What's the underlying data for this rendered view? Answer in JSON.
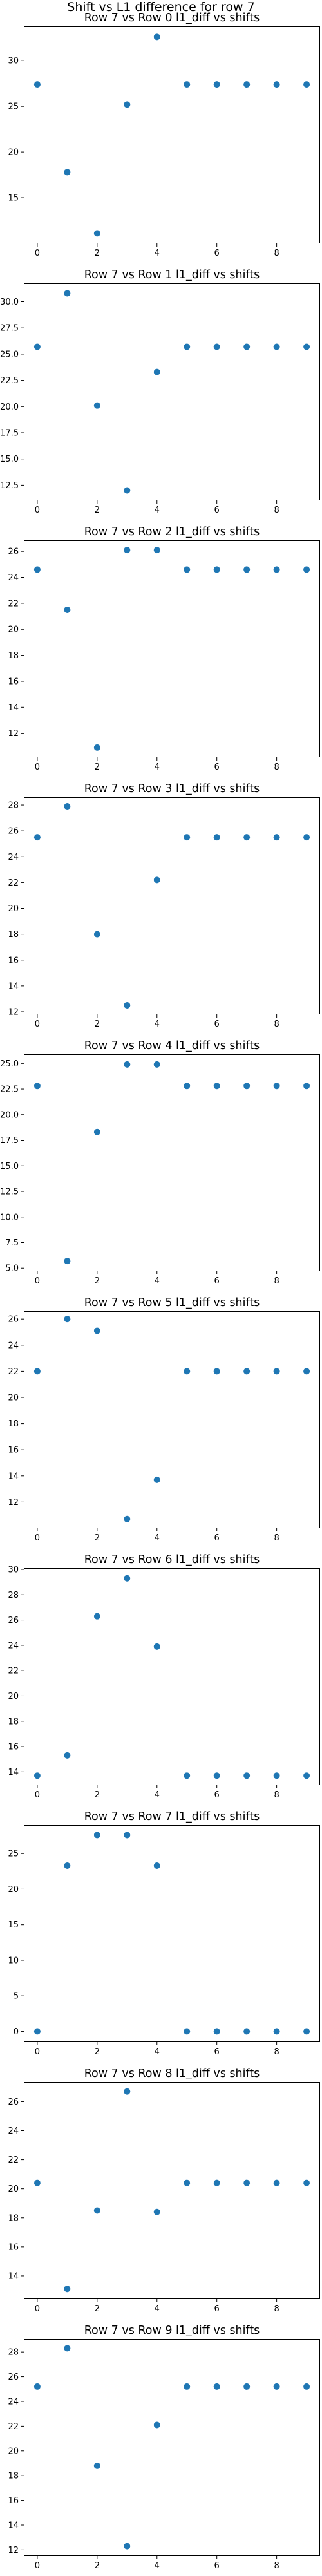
{
  "suptitle": "Shift vs L1 difference for row 7",
  "marker_color": "#1f77b4",
  "chart_data": [
    {
      "type": "scatter",
      "title": "Row 7 vs Row 0 l1_diff vs shifts",
      "x": [
        0,
        1,
        2,
        3,
        4,
        5,
        6,
        7,
        8,
        9
      ],
      "y": [
        27.4,
        17.8,
        11.1,
        25.2,
        32.6,
        27.4,
        27.4,
        27.4,
        27.4,
        27.4
      ],
      "xticks": [
        0,
        2,
        4,
        6,
        8
      ],
      "yticks": [
        15,
        20,
        25,
        30
      ],
      "ytick_labels": [
        "15",
        "20",
        "25",
        "30"
      ],
      "xlim": [
        -0.45,
        9.45
      ],
      "ylim": [
        10.0,
        33.75
      ]
    },
    {
      "type": "scatter",
      "title": "Row 7 vs Row 1 l1_diff vs shifts",
      "x": [
        0,
        1,
        2,
        3,
        4,
        5,
        6,
        7,
        8,
        9
      ],
      "y": [
        25.7,
        30.8,
        20.1,
        12.0,
        23.3,
        25.7,
        25.7,
        25.7,
        25.7,
        25.7
      ],
      "xticks": [
        0,
        2,
        4,
        6,
        8
      ],
      "yticks": [
        12.5,
        15.0,
        17.5,
        20.0,
        22.5,
        25.0,
        27.5,
        30.0
      ],
      "ytick_labels": [
        "12.5",
        "15.0",
        "17.5",
        "20.0",
        "22.5",
        "25.0",
        "27.5",
        "30.0"
      ],
      "xlim": [
        -0.45,
        9.45
      ],
      "ylim": [
        11.05,
        31.75
      ]
    },
    {
      "type": "scatter",
      "title": "Row 7 vs Row 2 l1_diff vs shifts",
      "x": [
        0,
        1,
        2,
        3,
        4,
        5,
        6,
        7,
        8,
        9
      ],
      "y": [
        24.6,
        21.5,
        10.9,
        26.1,
        26.1,
        24.6,
        24.6,
        24.6,
        24.6,
        24.6
      ],
      "xticks": [
        0,
        2,
        4,
        6,
        8
      ],
      "yticks": [
        12,
        14,
        16,
        18,
        20,
        22,
        24,
        26
      ],
      "ytick_labels": [
        "12",
        "14",
        "16",
        "18",
        "20",
        "22",
        "24",
        "26"
      ],
      "xlim": [
        -0.45,
        9.45
      ],
      "ylim": [
        10.15,
        26.85
      ]
    },
    {
      "type": "scatter",
      "title": "Row 7 vs Row 3 l1_diff vs shifts",
      "x": [
        0,
        1,
        2,
        3,
        4,
        5,
        6,
        7,
        8,
        9
      ],
      "y": [
        25.5,
        27.9,
        18.0,
        12.5,
        22.2,
        25.5,
        25.5,
        25.5,
        25.5,
        25.5
      ],
      "xticks": [
        0,
        2,
        4,
        6,
        8
      ],
      "yticks": [
        12,
        14,
        16,
        18,
        20,
        22,
        24,
        26,
        28
      ],
      "ytick_labels": [
        "12",
        "14",
        "16",
        "18",
        "20",
        "22",
        "24",
        "26",
        "28"
      ],
      "xlim": [
        -0.45,
        9.45
      ],
      "ylim": [
        11.8,
        28.6
      ]
    },
    {
      "type": "scatter",
      "title": "Row 7 vs Row 4 l1_diff vs shifts",
      "x": [
        0,
        1,
        2,
        3,
        4,
        5,
        6,
        7,
        8,
        9
      ],
      "y": [
        22.8,
        5.7,
        18.3,
        24.9,
        24.9,
        22.8,
        22.8,
        22.8,
        22.8,
        22.8
      ],
      "xticks": [
        0,
        2,
        4,
        6,
        8
      ],
      "yticks": [
        5.0,
        7.5,
        10.0,
        12.5,
        15.0,
        17.5,
        20.0,
        22.5,
        25.0
      ],
      "ytick_labels": [
        "5.0",
        "7.5",
        "10.0",
        "12.5",
        "15.0",
        "17.5",
        "20.0",
        "22.5",
        "25.0"
      ],
      "xlim": [
        -0.45,
        9.45
      ],
      "ylim": [
        4.7,
        25.9
      ]
    },
    {
      "type": "scatter",
      "title": "Row 7 vs Row 5 l1_diff vs shifts",
      "x": [
        0,
        1,
        2,
        3,
        4,
        5,
        6,
        7,
        8,
        9
      ],
      "y": [
        22.0,
        26.0,
        25.1,
        10.7,
        13.7,
        22.0,
        22.0,
        22.0,
        22.0,
        22.0
      ],
      "xticks": [
        0,
        2,
        4,
        6,
        8
      ],
      "yticks": [
        12,
        14,
        16,
        18,
        20,
        22,
        24,
        26
      ],
      "ytick_labels": [
        "12",
        "14",
        "16",
        "18",
        "20",
        "22",
        "24",
        "26"
      ],
      "xlim": [
        -0.45,
        9.45
      ],
      "ylim": [
        10.0,
        26.6
      ]
    },
    {
      "type": "scatter",
      "title": "Row 7 vs Row 6 l1_diff vs shifts",
      "x": [
        0,
        1,
        2,
        3,
        4,
        5,
        6,
        7,
        8,
        9
      ],
      "y": [
        13.7,
        15.3,
        26.3,
        29.3,
        23.9,
        13.7,
        13.7,
        13.7,
        13.7,
        13.7
      ],
      "xticks": [
        0,
        2,
        4,
        6,
        8
      ],
      "yticks": [
        14,
        16,
        18,
        20,
        22,
        24,
        26,
        28,
        30
      ],
      "ytick_labels": [
        "14",
        "16",
        "18",
        "20",
        "22",
        "24",
        "26",
        "28",
        "30"
      ],
      "xlim": [
        -0.45,
        9.45
      ],
      "ylim": [
        12.95,
        30.1
      ]
    },
    {
      "type": "scatter",
      "title": "Row 7 vs Row 7 l1_diff vs shifts",
      "x": [
        0,
        1,
        2,
        3,
        4,
        5,
        6,
        7,
        8,
        9
      ],
      "y": [
        0.0,
        23.3,
        27.6,
        27.6,
        23.3,
        0.0,
        0.0,
        0.0,
        0.0,
        0.0
      ],
      "xticks": [
        0,
        2,
        4,
        6,
        8
      ],
      "yticks": [
        0,
        5,
        10,
        15,
        20,
        25
      ],
      "ytick_labels": [
        "0",
        "5",
        "10",
        "15",
        "20",
        "25"
      ],
      "xlim": [
        -0.45,
        9.45
      ],
      "ylim": [
        -1.5,
        29.0
      ]
    },
    {
      "type": "scatter",
      "title": "Row 7 vs Row 8 l1_diff vs shifts",
      "x": [
        0,
        1,
        2,
        3,
        4,
        5,
        6,
        7,
        8,
        9
      ],
      "y": [
        20.4,
        13.1,
        18.5,
        26.7,
        18.4,
        20.4,
        20.4,
        20.4,
        20.4,
        20.4
      ],
      "xticks": [
        0,
        2,
        4,
        6,
        8
      ],
      "yticks": [
        14,
        16,
        18,
        20,
        22,
        24,
        26
      ],
      "ytick_labels": [
        "14",
        "16",
        "18",
        "20",
        "22",
        "24",
        "26"
      ],
      "xlim": [
        -0.45,
        9.45
      ],
      "ylim": [
        12.4,
        27.35
      ]
    },
    {
      "type": "scatter",
      "title": "Row 7 vs Row 9 l1_diff vs shifts",
      "x": [
        0,
        1,
        2,
        3,
        4,
        5,
        6,
        7,
        8,
        9
      ],
      "y": [
        25.2,
        28.3,
        18.8,
        12.3,
        22.1,
        25.2,
        25.2,
        25.2,
        25.2,
        25.2
      ],
      "xticks": [
        0,
        2,
        4,
        6,
        8
      ],
      "yticks": [
        12,
        14,
        16,
        18,
        20,
        22,
        24,
        26,
        28
      ],
      "ytick_labels": [
        "12",
        "14",
        "16",
        "18",
        "20",
        "22",
        "24",
        "26",
        "28"
      ],
      "xlim": [
        -0.45,
        9.45
      ],
      "ylim": [
        11.5,
        29.05
      ]
    }
  ]
}
